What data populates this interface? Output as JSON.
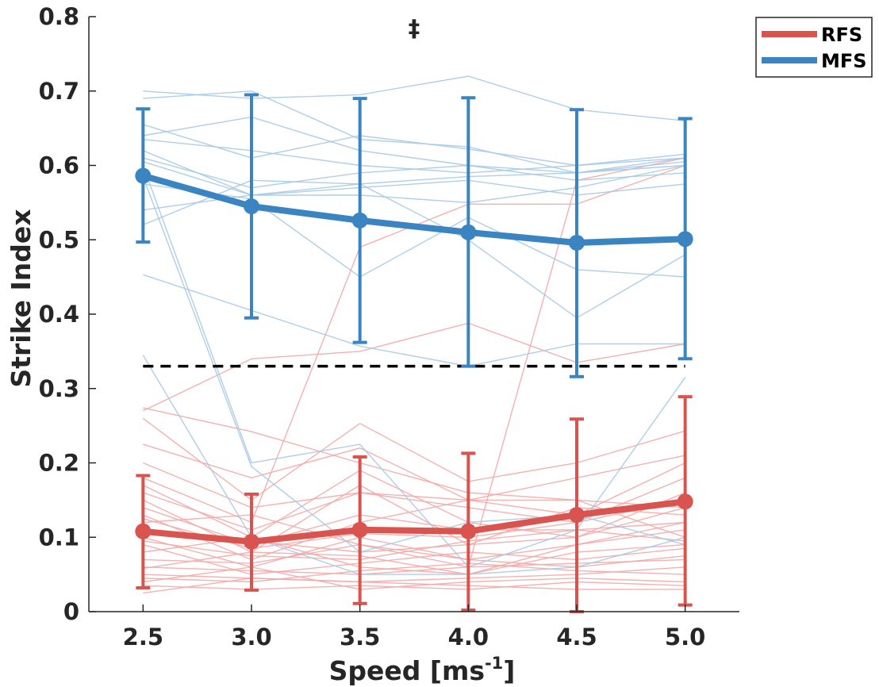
{
  "chart_data": {
    "type": "line",
    "title": "",
    "xlabel": "Speed [ms",
    "xlabel_sup": "-1",
    "xlabel_end": "]",
    "ylabel": "Strike Index",
    "x": [
      2.5,
      3.0,
      3.5,
      4.0,
      4.5,
      5.0
    ],
    "xtick_labels": [
      "2.5",
      "3.0",
      "3.5",
      "4.0",
      "4.5",
      "5.0"
    ],
    "xlim": [
      2.25,
      5.25
    ],
    "ylim": [
      0,
      0.8
    ],
    "yticks": [
      0,
      0.1,
      0.2,
      0.3,
      0.4,
      0.5,
      0.6,
      0.7,
      0.8
    ],
    "ytick_labels": [
      "0",
      "0.1",
      "0.2",
      "0.3",
      "0.4",
      "0.5",
      "0.6",
      "0.7",
      "0.8"
    ],
    "threshold": {
      "value": 0.33,
      "x_range": [
        2.5,
        5.0
      ],
      "style": "dashed",
      "color": "#000000"
    },
    "annotation": {
      "text": "‡",
      "x": 3.75,
      "y": 0.795
    },
    "legend": {
      "position": "top-right-outside",
      "entries": [
        "RFS",
        "MFS"
      ]
    },
    "series": [
      {
        "name": "RFS",
        "color": "#d9534f",
        "light_color": "#f2a9a7",
        "mean": [
          0.108,
          0.094,
          0.11,
          0.108,
          0.13,
          0.148
        ],
        "error_low": [
          0.032,
          0.029,
          0.011,
          0.002,
          0.0,
          0.009
        ],
        "error_high": [
          0.183,
          0.158,
          0.208,
          0.213,
          0.259,
          0.289
        ],
        "individuals": [
          [
            0.274,
            0.242,
            0.2,
            0.16,
            0.15,
            0.14
          ],
          [
            0.27,
            0.34,
            0.35,
            0.388,
            0.335,
            0.36
          ],
          [
            0.26,
            0.15,
            0.253,
            0.175,
            0.2,
            0.243
          ],
          [
            0.225,
            0.18,
            0.22,
            0.15,
            0.18,
            0.21
          ],
          [
            0.2,
            0.14,
            0.16,
            0.15,
            0.13,
            0.2
          ],
          [
            0.18,
            0.12,
            0.49,
            0.548,
            0.548,
            0.6
          ],
          [
            0.17,
            0.1,
            0.19,
            0.12,
            0.1,
            0.16
          ],
          [
            0.16,
            0.11,
            0.16,
            0.14,
            0.12,
            0.15
          ],
          [
            0.15,
            0.08,
            0.17,
            0.09,
            0.14,
            0.13
          ],
          [
            0.14,
            0.09,
            0.13,
            0.11,
            0.11,
            0.12
          ],
          [
            0.13,
            0.07,
            0.12,
            0.15,
            0.15,
            0.1
          ],
          [
            0.125,
            0.085,
            0.105,
            0.1,
            0.12,
            0.18
          ],
          [
            0.12,
            0.13,
            0.09,
            0.06,
            0.58,
            0.61
          ],
          [
            0.11,
            0.095,
            0.08,
            0.09,
            0.1,
            0.14
          ],
          [
            0.1,
            0.06,
            0.1,
            0.07,
            0.09,
            0.11
          ],
          [
            0.095,
            0.075,
            0.07,
            0.095,
            0.11,
            0.095
          ],
          [
            0.09,
            0.05,
            0.065,
            0.08,
            0.07,
            0.085
          ],
          [
            0.08,
            0.1,
            0.06,
            0.05,
            0.08,
            0.09
          ],
          [
            0.07,
            0.065,
            0.09,
            0.07,
            0.06,
            0.075
          ],
          [
            0.06,
            0.055,
            0.05,
            0.06,
            0.065,
            0.07
          ],
          [
            0.058,
            0.08,
            0.075,
            0.05,
            0.09,
            0.12
          ],
          [
            0.05,
            0.045,
            0.04,
            0.045,
            0.05,
            0.06
          ],
          [
            0.045,
            0.04,
            0.055,
            0.065,
            0.055,
            0.05
          ],
          [
            0.04,
            0.06,
            0.03,
            0.04,
            0.045,
            0.04
          ],
          [
            0.035,
            0.03,
            0.035,
            0.03,
            0.04,
            0.035
          ],
          [
            0.025,
            0.045,
            0.04,
            0.035,
            0.03,
            0.03
          ]
        ]
      },
      {
        "name": "MFS",
        "color": "#3a84c1",
        "light_color": "#a6c9e6",
        "mean": [
          0.586,
          0.545,
          0.526,
          0.51,
          0.496,
          0.501
        ],
        "error_low": [
          0.497,
          0.395,
          0.362,
          0.33,
          0.316,
          0.34
        ],
        "error_high": [
          0.676,
          0.695,
          0.69,
          0.691,
          0.675,
          0.663
        ],
        "individuals": [
          [
            0.7,
            0.69,
            0.695,
            0.72,
            0.675,
            0.66
          ],
          [
            0.69,
            0.7,
            0.635,
            0.625,
            0.59,
            0.61
          ],
          [
            0.655,
            0.61,
            0.64,
            0.622,
            0.6,
            0.615
          ],
          [
            0.64,
            0.665,
            0.62,
            0.6,
            0.59,
            0.6
          ],
          [
            0.635,
            0.62,
            0.6,
            0.59,
            0.6,
            0.61
          ],
          [
            0.62,
            0.56,
            0.57,
            0.58,
            0.56,
            0.575
          ],
          [
            0.61,
            0.57,
            0.59,
            0.6,
            0.58,
            0.59
          ],
          [
            0.605,
            0.56,
            0.56,
            0.55,
            0.57,
            0.6
          ],
          [
            0.6,
            0.2,
            0.225,
            0.06,
            0.11,
            0.315
          ],
          [
            0.585,
            0.195,
            0.08,
            0.12,
            0.13,
            0.09
          ],
          [
            0.575,
            0.555,
            0.45,
            0.53,
            0.46,
            0.45
          ],
          [
            0.54,
            0.56,
            0.575,
            0.5,
            0.395,
            0.48
          ],
          [
            0.52,
            0.58,
            0.575,
            0.585,
            0.59,
            0.605
          ],
          [
            0.453,
            0.405,
            0.357,
            0.33,
            0.36,
            0.36
          ],
          [
            0.345,
            0.1,
            0.05,
            0.05,
            0.06,
            0.1
          ]
        ]
      }
    ]
  }
}
